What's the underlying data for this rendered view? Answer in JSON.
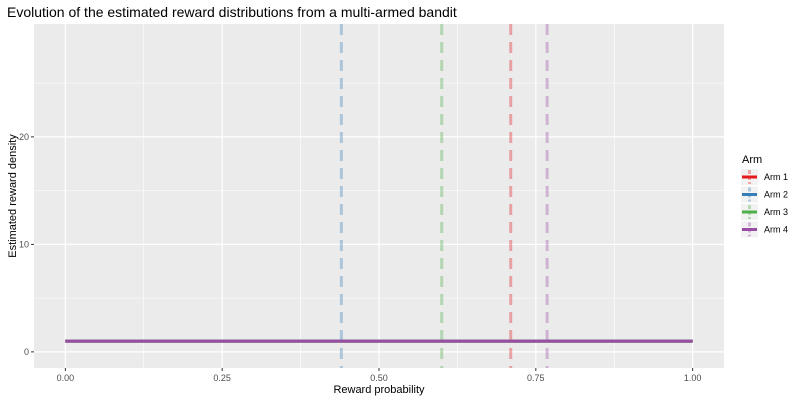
{
  "chart_data": {
    "type": "line",
    "title": "Evolution of the estimated reward distributions from a multi-armed bandit",
    "xlabel": "Reward probability",
    "ylabel": "Estimated reward density",
    "xlim": [
      -0.05,
      1.05
    ],
    "ylim": [
      -1.5,
      30.5
    ],
    "x_ticks": [
      0.0,
      0.25,
      0.5,
      0.75,
      1.0
    ],
    "x_tick_labels": [
      "0.00",
      "0.25",
      "0.50",
      "0.75",
      "1.00"
    ],
    "x_minor_ticks": [
      0.125,
      0.375,
      0.625,
      0.875
    ],
    "y_ticks": [
      0,
      10,
      20
    ],
    "y_tick_labels": [
      "0",
      "10",
      "20"
    ],
    "y_minor_ticks": [
      5,
      15,
      25
    ],
    "grid": true,
    "legend": {
      "title": "Arm",
      "position": "right",
      "entries": [
        "Arm 1",
        "Arm 2",
        "Arm 3",
        "Arm 4"
      ]
    },
    "series": [
      {
        "name": "Arm 1",
        "color": "#e41a1c",
        "x": [
          0,
          1
        ],
        "y": [
          1,
          1
        ],
        "mean": 0.71
      },
      {
        "name": "Arm 2",
        "color": "#377eb8",
        "x": [
          0,
          1
        ],
        "y": [
          1,
          1
        ],
        "mean": 0.44
      },
      {
        "name": "Arm 3",
        "color": "#4daf4a",
        "x": [
          0,
          1
        ],
        "y": [
          1,
          1
        ],
        "mean": 0.6
      },
      {
        "name": "Arm 4",
        "color": "#984ea3",
        "x": [
          0,
          1
        ],
        "y": [
          1,
          1
        ],
        "mean": 0.768
      }
    ]
  }
}
